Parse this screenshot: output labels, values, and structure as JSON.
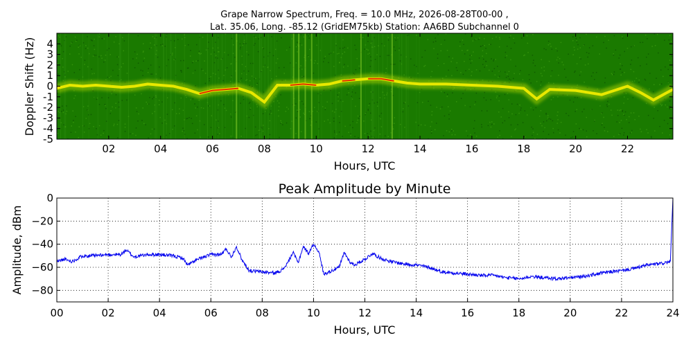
{
  "figure": {
    "title_line1": "Grape Narrow Spectrum, Freq. = 10.0 MHz, 2026-08-28T00-00 ,",
    "title_line2": "Lat.  35.06, Long. -85.12 (GridEM75kb) Station: AA6BD Subchannel 0"
  },
  "chart_data": [
    {
      "type": "heatmap",
      "title": "",
      "xlabel": "Hours, UTC",
      "ylabel": "Doppler Shift (Hz)",
      "xlim": [
        0,
        23.75
      ],
      "ylim": [
        -5,
        5
      ],
      "xticks": [
        2,
        4,
        6,
        8,
        10,
        12,
        14,
        16,
        18,
        20,
        22
      ],
      "xtick_labels": [
        "02",
        "04",
        "06",
        "08",
        "10",
        "12",
        "14",
        "16",
        "18",
        "20",
        "22"
      ],
      "yticks": [
        -5,
        -4,
        -3,
        -2,
        -1,
        0,
        1,
        2,
        3,
        4
      ],
      "ytick_labels": [
        "-5",
        "-4",
        "-3",
        "-2",
        "-1",
        "0",
        "1",
        "2",
        "3",
        "4"
      ],
      "colors": {
        "background": "#1a7a00",
        "trace": "#e8e800",
        "peak": "#e03000"
      },
      "doppler_trace": {
        "hours": [
          0,
          0.5,
          1,
          1.5,
          2,
          2.5,
          3,
          3.5,
          4,
          4.5,
          5,
          5.5,
          6,
          6.5,
          7,
          7.5,
          8,
          8.5,
          9,
          9.5,
          10,
          10.5,
          11,
          11.5,
          12,
          12.5,
          13,
          13.5,
          14,
          15,
          16,
          17,
          18,
          18.5,
          19,
          20,
          21,
          22,
          22.5,
          23,
          23.75
        ],
        "shift_hz": [
          -0.2,
          0.1,
          0.0,
          0.1,
          0.0,
          -0.1,
          0.0,
          0.2,
          0.1,
          0.0,
          -0.3,
          -0.7,
          -0.4,
          -0.3,
          -0.2,
          -0.6,
          -1.5,
          0.1,
          0.1,
          0.2,
          0.1,
          0.2,
          0.5,
          0.6,
          0.7,
          0.7,
          0.5,
          0.3,
          0.2,
          0.2,
          0.1,
          0.0,
          -0.2,
          -1.2,
          -0.3,
          -0.4,
          -0.8,
          0.0,
          -0.6,
          -1.3,
          -0.3
        ]
      }
    },
    {
      "type": "line",
      "title": "Peak Amplitude by Minute",
      "xlabel": "Hours, UTC",
      "ylabel": "Amplitude, dBm",
      "xlim": [
        0,
        24
      ],
      "ylim": [
        -90,
        0
      ],
      "grid": true,
      "xticks": [
        0,
        2,
        4,
        6,
        8,
        10,
        12,
        14,
        16,
        18,
        20,
        22,
        24
      ],
      "xtick_labels": [
        "00",
        "02",
        "04",
        "06",
        "08",
        "10",
        "12",
        "14",
        "16",
        "18",
        "20",
        "22",
        "24"
      ],
      "yticks": [
        0,
        -20,
        -40,
        -60,
        -80
      ],
      "ytick_labels": [
        "0",
        "−20",
        "−40",
        "−60",
        "−80"
      ],
      "line_color": "#0000ee",
      "series": [
        {
          "x": [
            0,
            0.3,
            0.6,
            1,
            1.5,
            2,
            2.5,
            2.7,
            3,
            3.5,
            4,
            4.5,
            4.9,
            5.1,
            5.5,
            6,
            6.4,
            6.6,
            6.8,
            7,
            7.2,
            7.5,
            8,
            8.5,
            8.8,
            9,
            9.2,
            9.4,
            9.6,
            9.8,
            10,
            10.2,
            10.4,
            10.6,
            11,
            11.2,
            11.4,
            11.6,
            12,
            12.3,
            12.6,
            13,
            13.5,
            14,
            14.5,
            15,
            15.5,
            16,
            16.5,
            17,
            17.5,
            18,
            18.5,
            19,
            19.5,
            20,
            20.5,
            21,
            21.5,
            22,
            22.5,
            23,
            23.5,
            23.9,
            24
          ],
          "y": [
            -55,
            -53,
            -55,
            -50,
            -50,
            -49,
            -49,
            -45,
            -51,
            -49,
            -49,
            -50,
            -52,
            -58,
            -53,
            -49,
            -49,
            -44,
            -51,
            -42,
            -53,
            -63,
            -64,
            -65,
            -62,
            -56,
            -47,
            -56,
            -42,
            -48,
            -40,
            -46,
            -66,
            -64,
            -60,
            -47,
            -55,
            -58,
            -53,
            -48,
            -52,
            -55,
            -57,
            -58,
            -60,
            -64,
            -65,
            -66,
            -67,
            -67,
            -69,
            -70,
            -68,
            -69,
            -70,
            -69,
            -68,
            -66,
            -64,
            -63,
            -61,
            -58,
            -57,
            -55,
            0
          ]
        }
      ]
    }
  ]
}
